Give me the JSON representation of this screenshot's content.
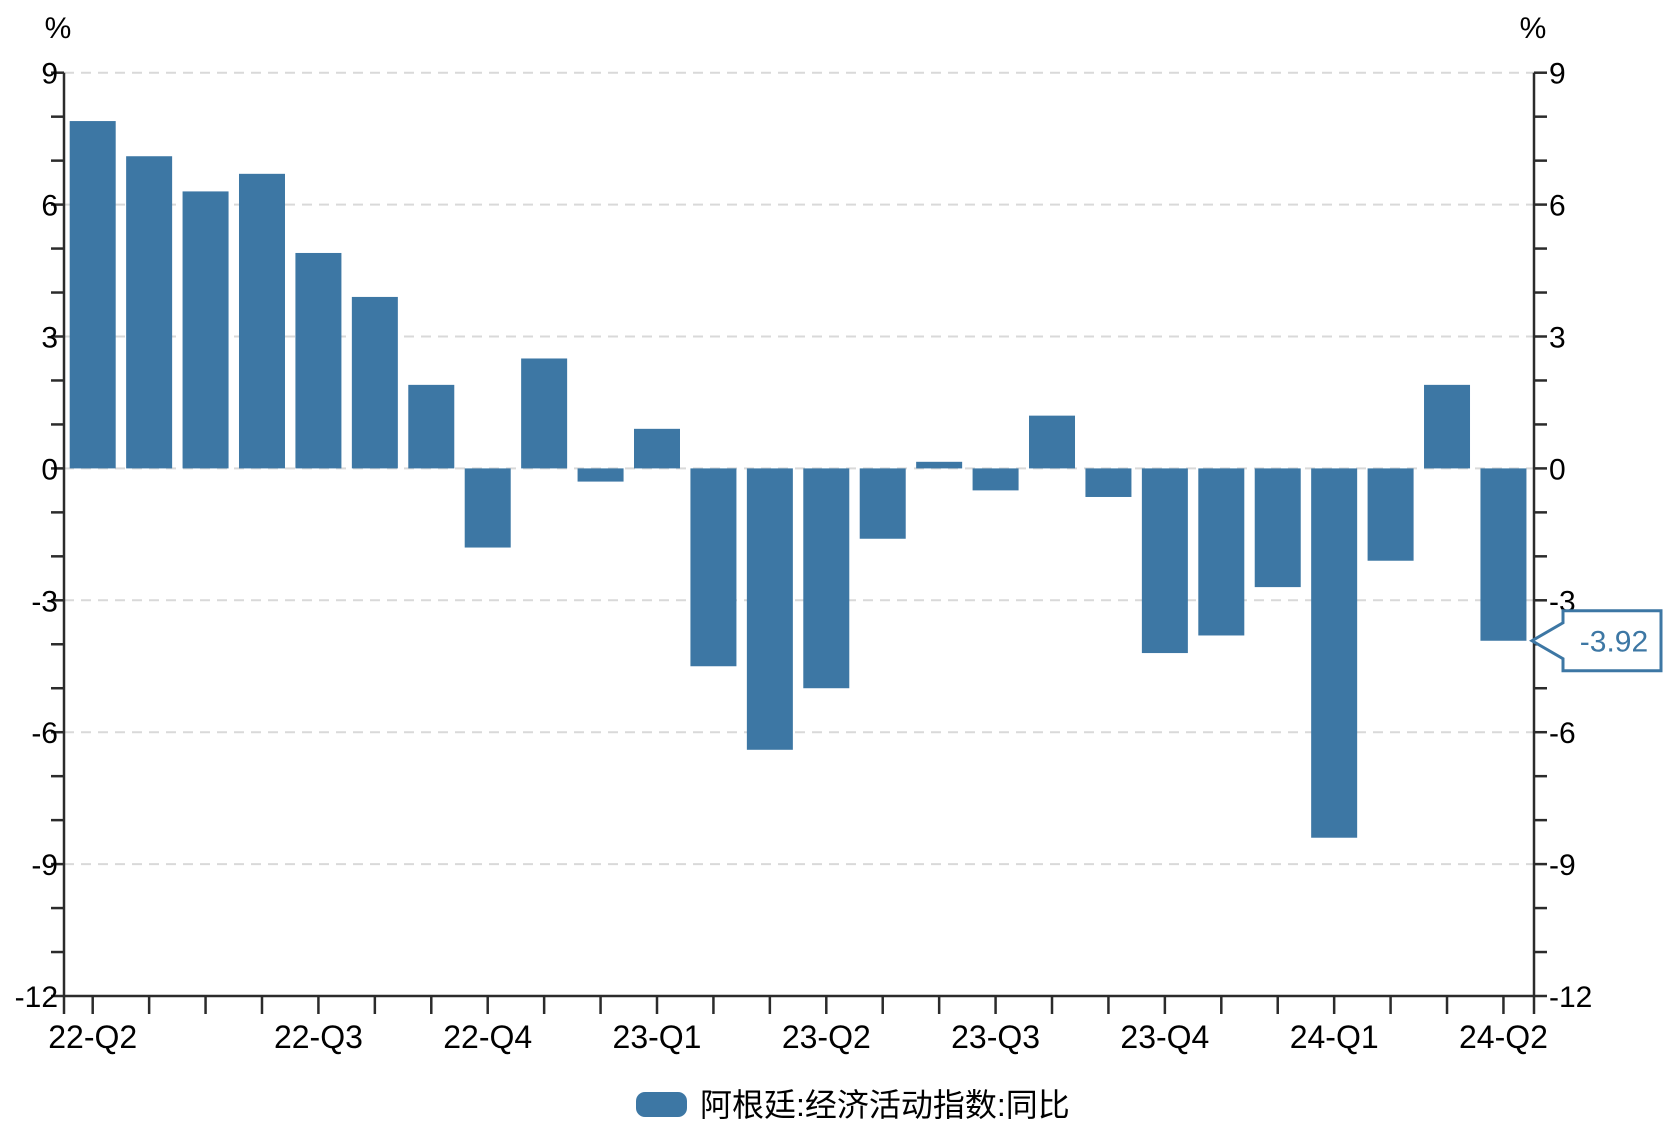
{
  "chart_data": {
    "type": "bar",
    "title": "",
    "unit_label_left": "%",
    "unit_label_right": "%",
    "n_points": 26,
    "series": [
      {
        "name": "阿根廷:经济活动指数:同比",
        "color": "#3d77a4",
        "values": [
          7.9,
          7.1,
          6.3,
          6.7,
          4.9,
          3.9,
          1.9,
          -1.8,
          2.5,
          -0.3,
          0.9,
          -4.5,
          -6.4,
          -5.0,
          -1.6,
          0.15,
          -0.5,
          1.2,
          -0.65,
          -4.2,
          -3.8,
          -2.7,
          -8.4,
          -2.1,
          1.9,
          -3.92
        ]
      }
    ],
    "x_tick_labels": [
      {
        "index": 0,
        "label": "22-Q2"
      },
      {
        "index": 4,
        "label": "22-Q3"
      },
      {
        "index": 7,
        "label": "22-Q4"
      },
      {
        "index": 10,
        "label": "23-Q1"
      },
      {
        "index": 13,
        "label": "23-Q2"
      },
      {
        "index": 16,
        "label": "23-Q3"
      },
      {
        "index": 19,
        "label": "23-Q4"
      },
      {
        "index": 22,
        "label": "24-Q1"
      },
      {
        "index": 25,
        "label": "24-Q2"
      }
    ],
    "y_axis": {
      "min": -12,
      "max": 9,
      "major_step": 3,
      "minor_step": 1,
      "major_labels": [
        "9",
        "6",
        "3",
        "0",
        "-3",
        "-6",
        "-9",
        "-12"
      ],
      "major_values": [
        9,
        6,
        3,
        0,
        -3,
        -6,
        -9,
        -12
      ]
    },
    "grid": {
      "show": true,
      "color": "#d9d9d9"
    },
    "legend": {
      "position": "bottom",
      "items": [
        {
          "label": "阿根廷:经济活动指数:同比",
          "color": "#3d77a4"
        }
      ]
    },
    "callout": {
      "value_label": "-3.92",
      "points_to_index": 25,
      "points_to_value": -3.92,
      "border_color": "#3d77a4",
      "text_color": "#3d77a4",
      "background": "#ffffff"
    }
  },
  "colors": {
    "bar": "#3d77a4",
    "axis": "#2b2b2b",
    "tick": "#2b2b2b",
    "grid": "#d9d9d9",
    "label_text": "#000000",
    "background": "#ffffff"
  }
}
